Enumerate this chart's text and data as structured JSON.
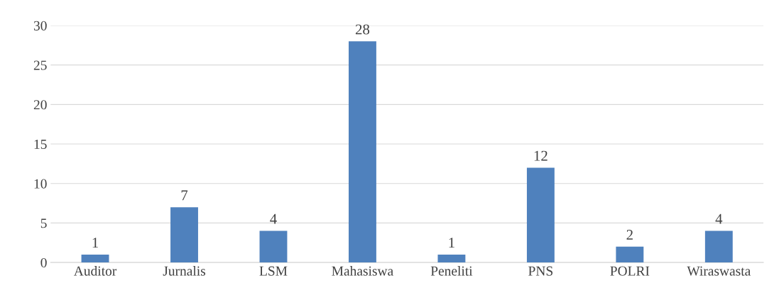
{
  "chart_data": {
    "type": "bar",
    "categories": [
      "Auditor",
      "Jurnalis",
      "LSM",
      "Mahasiswa",
      "Peneliti",
      "PNS",
      "POLRI",
      "Wiraswasta"
    ],
    "values": [
      1,
      7,
      4,
      28,
      1,
      12,
      2,
      4
    ],
    "color": "#4f81bd",
    "ylim": [
      0,
      30
    ],
    "yticks": [
      0,
      5,
      10,
      15,
      20,
      25,
      30
    ],
    "grid": "y",
    "data_labels": true
  }
}
